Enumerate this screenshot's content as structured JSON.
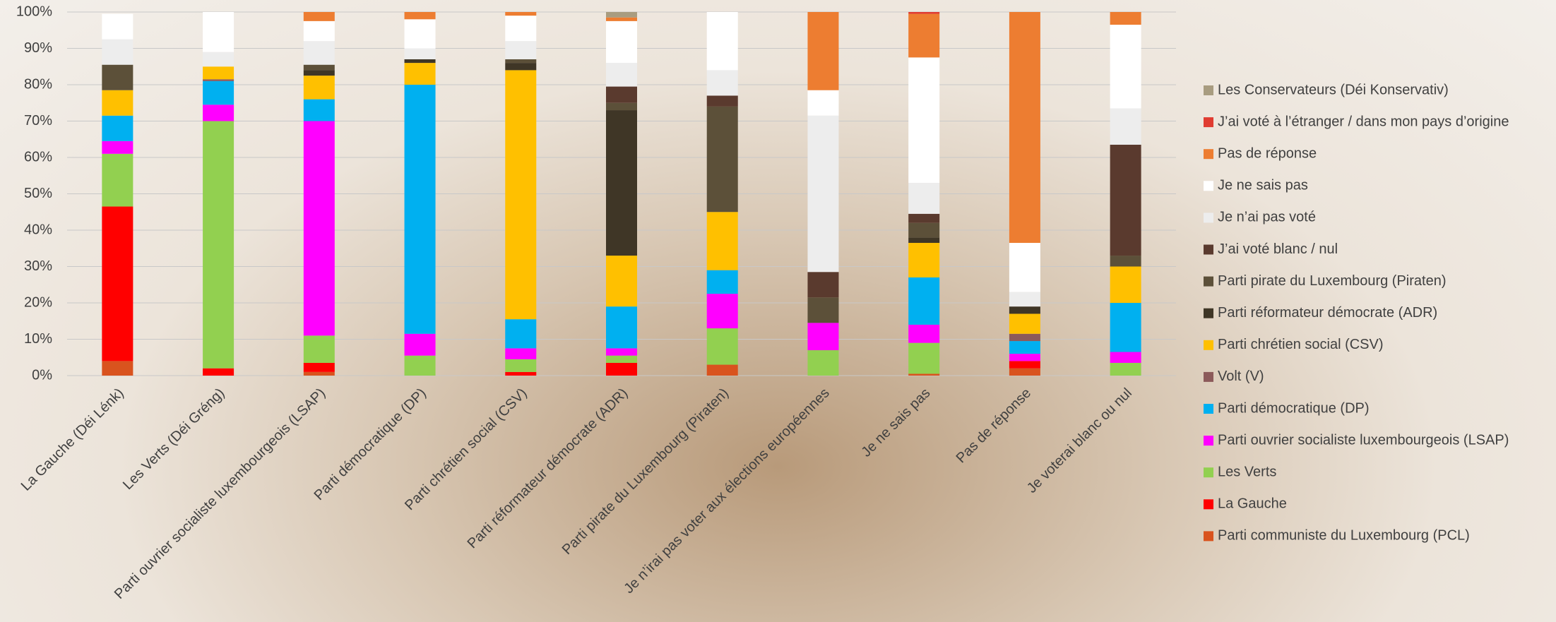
{
  "chart_data": {
    "type": "stacked_bar",
    "categories": [
      "La Gauche (Déi Lénk)",
      "Les Verts (Déi Gréng)",
      "Parti ouvrier socialiste luxembourgeois (LSAP)",
      "Parti démocratique (DP)",
      "Parti chrétien social (CSV)",
      "Parti réformateur démocrate (ADR)",
      "Parti pirate du Luxembourg (Piraten)",
      "Je n’irai pas voter aux élections européennes",
      "Je ne sais pas",
      "Pas de réponse",
      "Je voterai blanc ou nul"
    ],
    "ylim": [
      0,
      100
    ],
    "yticks": [
      {
        "value": 0,
        "label": "0%"
      },
      {
        "value": 10,
        "label": "10%"
      },
      {
        "value": 20,
        "label": "20%"
      },
      {
        "value": 30,
        "label": "30%"
      },
      {
        "value": 40,
        "label": "40%"
      },
      {
        "value": 50,
        "label": "50%"
      },
      {
        "value": 60,
        "label": "60%"
      },
      {
        "value": 70,
        "label": "70%"
      },
      {
        "value": 80,
        "label": "80%"
      },
      {
        "value": 90,
        "label": "90%"
      },
      {
        "value": 100,
        "label": "100%"
      }
    ],
    "grid": true,
    "legend": "right",
    "series": [
      {
        "name": "Parti communiste du Luxembourg (PCL)",
        "color": "#d9531e",
        "values": [
          4,
          0,
          1,
          0,
          0,
          0,
          3,
          0,
          0.5,
          2,
          0
        ]
      },
      {
        "name": "La Gauche",
        "color": "#ff0000",
        "values": [
          42.5,
          2,
          2.5,
          0,
          1,
          3.5,
          0,
          0,
          0,
          2,
          0
        ]
      },
      {
        "name": "Les Verts",
        "color": "#92d050",
        "values": [
          14.5,
          68,
          7.5,
          5.5,
          3.5,
          2,
          10,
          7,
          8.5,
          0,
          3.5
        ]
      },
      {
        "name": "Parti ouvrier socialiste luxembourgeois (LSAP)",
        "color": "#ff00ff",
        "values": [
          3.5,
          4.5,
          59,
          6,
          3,
          2,
          9.5,
          7.5,
          5,
          2,
          3
        ]
      },
      {
        "name": "Parti démocratique (DP)",
        "color": "#00b0f0",
        "values": [
          7,
          6.5,
          6,
          68.5,
          8,
          11.5,
          6.5,
          0,
          13,
          3.5,
          13.5
        ]
      },
      {
        "name": "Volt (V)",
        "color": "#8c5a5a",
        "values": [
          0,
          0.5,
          0,
          0,
          0,
          0,
          0,
          0,
          0,
          2,
          0
        ]
      },
      {
        "name": "Parti chrétien social (CSV)",
        "color": "#ffc000",
        "values": [
          7,
          3.5,
          6.5,
          6,
          68.5,
          14,
          16,
          0,
          9.5,
          5.5,
          10
        ]
      },
      {
        "name": "Parti réformateur démocrate (ADR)",
        "color": "#3f3626",
        "values": [
          0,
          0,
          1.5,
          1,
          2,
          40,
          0,
          0,
          1.5,
          2,
          0
        ]
      },
      {
        "name": "Parti pirate du Luxembourg (Piraten)",
        "color": "#5c5039",
        "values": [
          7,
          0,
          1.5,
          0,
          1,
          2,
          29,
          7,
          4,
          0,
          3
        ]
      },
      {
        "name": "J’ai voté blanc / nul",
        "color": "#5a3a2e",
        "values": [
          0,
          0,
          0,
          0,
          0,
          4.5,
          3,
          7,
          2.5,
          0,
          30.5
        ]
      },
      {
        "name": "Je n’ai pas voté",
        "color": "#ededed",
        "values": [
          7,
          4,
          6.5,
          3,
          5,
          6.5,
          7,
          43,
          8.5,
          4,
          10
        ]
      },
      {
        "name": "Je ne sais pas",
        "color": "#ffffff",
        "values": [
          7,
          11,
          5.5,
          8,
          7,
          11.5,
          16,
          7,
          34.5,
          13.5,
          23
        ]
      },
      {
        "name": "Pas de réponse",
        "color": "#ed7d31",
        "values": [
          0,
          0,
          2.5,
          2,
          1,
          1,
          0,
          21.5,
          12,
          63.5,
          3.5
        ]
      },
      {
        "name": "J’ai voté à l’étranger / dans mon pays d’origine",
        "color": "#e03c31",
        "values": [
          0,
          0,
          0,
          0,
          0,
          0,
          0,
          0,
          0.5,
          0,
          0
        ]
      },
      {
        "name": "Les Conservateurs (Déi Konservativ)",
        "color": "#a89c80",
        "values": [
          0,
          0,
          0,
          0,
          0,
          1.5,
          0,
          0,
          0,
          0,
          0
        ]
      }
    ]
  }
}
